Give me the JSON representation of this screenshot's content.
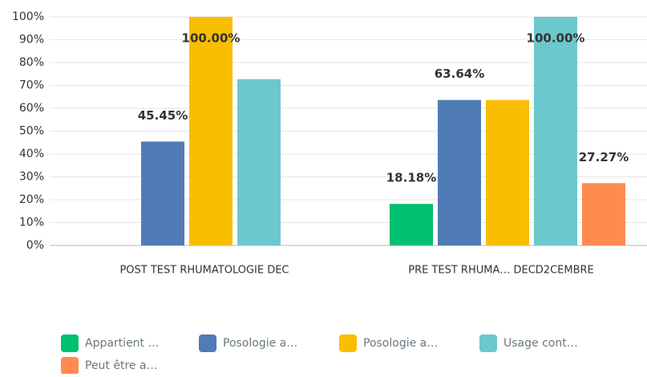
{
  "chart_data": {
    "type": "bar",
    "categories": [
      "POST TEST RHUMATOLOGIE DEC",
      "PRE TEST RHUMA… DECD2CEMBRE"
    ],
    "series": [
      {
        "name": "Appartient …",
        "color": "#00bf6f",
        "values": [
          0,
          18.18
        ],
        "value_labels": [
          null,
          "18.18%"
        ]
      },
      {
        "name": "Posologie a…",
        "color": "#507cb6",
        "values": [
          45.45,
          63.64
        ],
        "value_labels": [
          "45.45%",
          "63.64%"
        ]
      },
      {
        "name": "Posologie a…",
        "color": "#f9be00",
        "values": [
          100,
          63.64
        ],
        "value_labels": [
          "100.00%",
          null
        ]
      },
      {
        "name": "Usage cont…",
        "color": "#6bc8cd",
        "values": [
          72.73,
          100
        ],
        "value_labels": [
          null,
          "100.00%"
        ]
      },
      {
        "name": "Peut être a…",
        "color": "#ff8b4f",
        "values": [
          0,
          27.27
        ],
        "value_labels": [
          null,
          "27.27%"
        ]
      }
    ],
    "ylim": [
      0,
      100
    ],
    "yticks": [
      {
        "value": 0,
        "label": "0%"
      },
      {
        "value": 10,
        "label": "10%"
      },
      {
        "value": 20,
        "label": "20%"
      },
      {
        "value": 30,
        "label": "30%"
      },
      {
        "value": 40,
        "label": "40%"
      },
      {
        "value": 50,
        "label": "50%"
      },
      {
        "value": 60,
        "label": "60%"
      },
      {
        "value": 70,
        "label": "70%"
      },
      {
        "value": 80,
        "label": "80%"
      },
      {
        "value": 90,
        "label": "90%"
      },
      {
        "value": 100,
        "label": "100%"
      }
    ],
    "grid": true
  }
}
